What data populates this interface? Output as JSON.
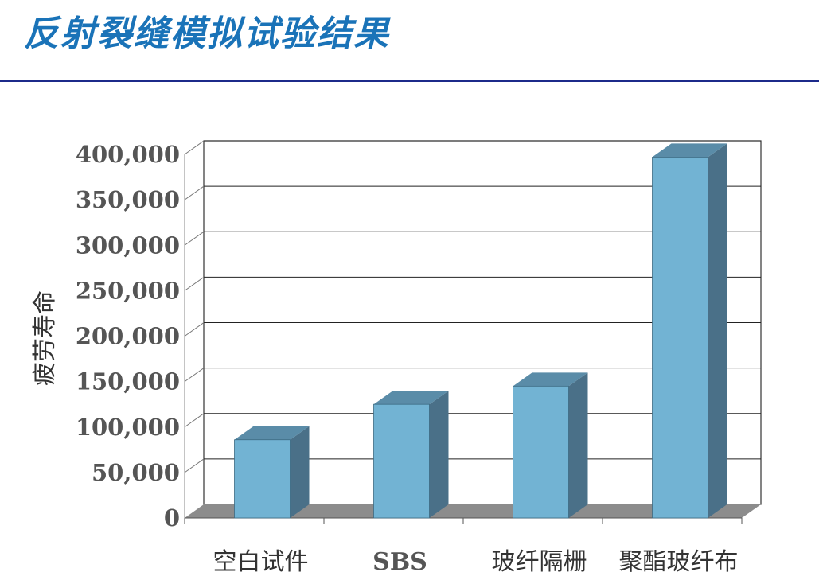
{
  "slide": {
    "title": "反射裂缝模拟试验结果"
  },
  "chart_data": {
    "type": "bar",
    "title": "",
    "xlabel": "",
    "ylabel": "疲劳寿命",
    "categories": [
      "空白试件",
      "SBS",
      "玻纤隔栅",
      "聚酯玻纤布"
    ],
    "values": [
      86000,
      125000,
      145000,
      397000
    ],
    "ylim": [
      0,
      400000
    ],
    "yticks": [
      0,
      50000,
      100000,
      150000,
      200000,
      250000,
      300000,
      350000,
      400000
    ],
    "ytick_labels": [
      "0",
      "50,000",
      "100,000",
      "150,000",
      "200,000",
      "250,000",
      "300,000",
      "350,000",
      "400,000"
    ],
    "grid": true,
    "legend": "none",
    "style": "3d",
    "colors": {
      "bar_front": "#72b3d3",
      "bar_side": "#4a7088",
      "bar_top": "#5a8ca8",
      "floor": "#8c8c8c"
    }
  }
}
